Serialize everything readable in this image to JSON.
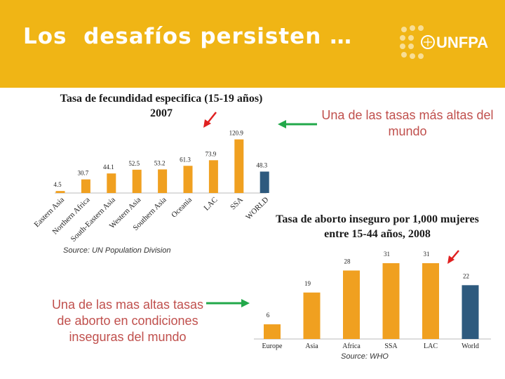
{
  "header": {
    "title": "Los  desafíos persisten …",
    "logo_text": "UNFPA",
    "background": "#f0b515"
  },
  "annotations": {
    "top_note": "Una de las tasas más altas del mundo",
    "bottom_note": "Una de las mas altas tasas de aborto en condiciones inseguras del mundo"
  },
  "chart_data": [
    {
      "type": "bar",
      "title": "Tasa de fecundidad especifica (15-19 años) 2007",
      "source": "Source: UN Population Division",
      "categories": [
        "Eastern Asia",
        "Northern Africa",
        "South-Eastern Asia",
        "Western Asia",
        "Southern Asia",
        "Oceania",
        "LAC",
        "SSA",
        "WORLD"
      ],
      "values": [
        4.5,
        30.7,
        44.1,
        52.5,
        53.2,
        61.3,
        73.9,
        120.9,
        48.3
      ],
      "labels": [
        "4.5",
        "30.7",
        "44.1",
        "52.5",
        "53.2",
        "61.3",
        "73.9",
        "120.9",
        "48.3"
      ],
      "colors": [
        "#f0a020",
        "#f0a020",
        "#f0a020",
        "#f0a020",
        "#f0a020",
        "#f0a020",
        "#f0a020",
        "#f0a020",
        "#2e5a7e"
      ],
      "ylim": [
        0,
        125
      ]
    },
    {
      "type": "bar",
      "title": "Tasa de  aborto inseguro por  1,000 mujeres entre 15-44 años, 2008",
      "source": "Source: WHO",
      "categories": [
        "Europe",
        "Asia",
        "Africa",
        "SSA",
        "LAC",
        "World"
      ],
      "values": [
        6,
        19,
        28,
        31,
        31,
        22
      ],
      "labels": [
        "6",
        "19",
        "28",
        "31",
        "31",
        "22"
      ],
      "colors": [
        "#f0a020",
        "#f0a020",
        "#f0a020",
        "#f0a020",
        "#f0a020",
        "#2e5a7e"
      ],
      "ylim": [
        0,
        33
      ]
    }
  ]
}
